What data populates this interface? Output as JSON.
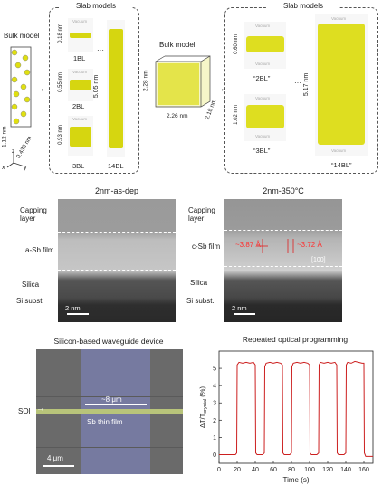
{
  "panel_a": {
    "slab_title_left": "Slab models",
    "slab_title_right": "Slab models",
    "bulk_left": "Bulk model",
    "bulk_right": "Bulk model",
    "vacuum": "Vacuum",
    "axes": {
      "x": "x",
      "y": "y",
      "z": "z"
    },
    "bulk_dims_left": {
      "height": "1.12 nm",
      "width": "0.436 nm"
    },
    "bulk_dims_right": {
      "height": "2.28 nm",
      "width": "2.26 nm",
      "depth": "2.18 nm"
    },
    "left_slabs": [
      {
        "label": "1BL",
        "thickness": "0.18 nm"
      },
      {
        "label": "2BL",
        "thickness": "0.55 nm"
      },
      {
        "label": "3BL",
        "thickness": "0.93 nm"
      },
      {
        "label": "14BL",
        "thickness": "5.05 nm"
      }
    ],
    "right_slabs": [
      {
        "label": "“2BL”",
        "thickness": "0.60 nm"
      },
      {
        "label": "“3BL”",
        "thickness": "1.02 nm"
      },
      {
        "label": "“14BL”",
        "thickness": "5.17 nm"
      }
    ],
    "ellipsis": "···"
  },
  "panel_b": {
    "left_title": "2nm-as-dep",
    "right_title": "2nm-350°C",
    "left_labels": [
      "Capping layer",
      "a-Sb film",
      "Silica",
      "Si subst."
    ],
    "right_labels": [
      "Capping layer",
      "c-Sb film",
      "Silica",
      "Si subst."
    ],
    "scale_left": "2 nm",
    "scale_right": "2 nm",
    "spacing_1": "~3.87 Å",
    "spacing_2": "~3.72 Å",
    "direction": "[100]"
  },
  "panel_c": {
    "title": "Silicon-based waveguide device",
    "soi": "SOI",
    "width_label": "~8 μm",
    "film_label": "Sb thin film",
    "scale": "4 μm"
  },
  "chart_data": {
    "type": "line",
    "title": "Repeated optical programming",
    "xlabel": "Time (s)",
    "ylabel": "ΔT/T_crystal (%)",
    "xlim": [
      0,
      170
    ],
    "ylim": [
      -0.5,
      6
    ],
    "xticks": [
      0,
      20,
      40,
      60,
      80,
      100,
      120,
      140,
      160
    ],
    "yticks": [
      0,
      1,
      2,
      3,
      4,
      5
    ],
    "color": "#cc1f1f",
    "series": [
      {
        "x": [
          0,
          18,
          19.5,
          20,
          22,
          26,
          30,
          34,
          38,
          40,
          40.5,
          42,
          48,
          50,
          50.5,
          52,
          56,
          60,
          64,
          68,
          70,
          70.5,
          72,
          78,
          80,
          80.5,
          82,
          86,
          90,
          94,
          98,
          100,
          100.5,
          102,
          108,
          110,
          110.5,
          112,
          116,
          120,
          124,
          128,
          130,
          130.5,
          132,
          138,
          140,
          140.5,
          142,
          146,
          150,
          154,
          158,
          160,
          160.5,
          162,
          170
        ],
        "y": [
          0.0,
          0.0,
          0.1,
          5.2,
          5.35,
          5.3,
          5.35,
          5.3,
          5.35,
          5.2,
          0.1,
          0.0,
          0.0,
          0.1,
          5.1,
          5.3,
          5.35,
          5.3,
          5.35,
          5.3,
          5.2,
          0.1,
          0.0,
          0.0,
          0.1,
          5.1,
          5.3,
          5.35,
          5.3,
          5.35,
          5.3,
          5.2,
          0.1,
          0.0,
          0.0,
          0.1,
          5.2,
          5.35,
          5.3,
          5.35,
          5.3,
          5.35,
          5.2,
          0.1,
          0.0,
          0.0,
          0.1,
          5.2,
          5.35,
          5.3,
          5.4,
          5.35,
          5.3,
          5.3,
          0.1,
          -0.1,
          -0.1
        ]
      }
    ]
  }
}
